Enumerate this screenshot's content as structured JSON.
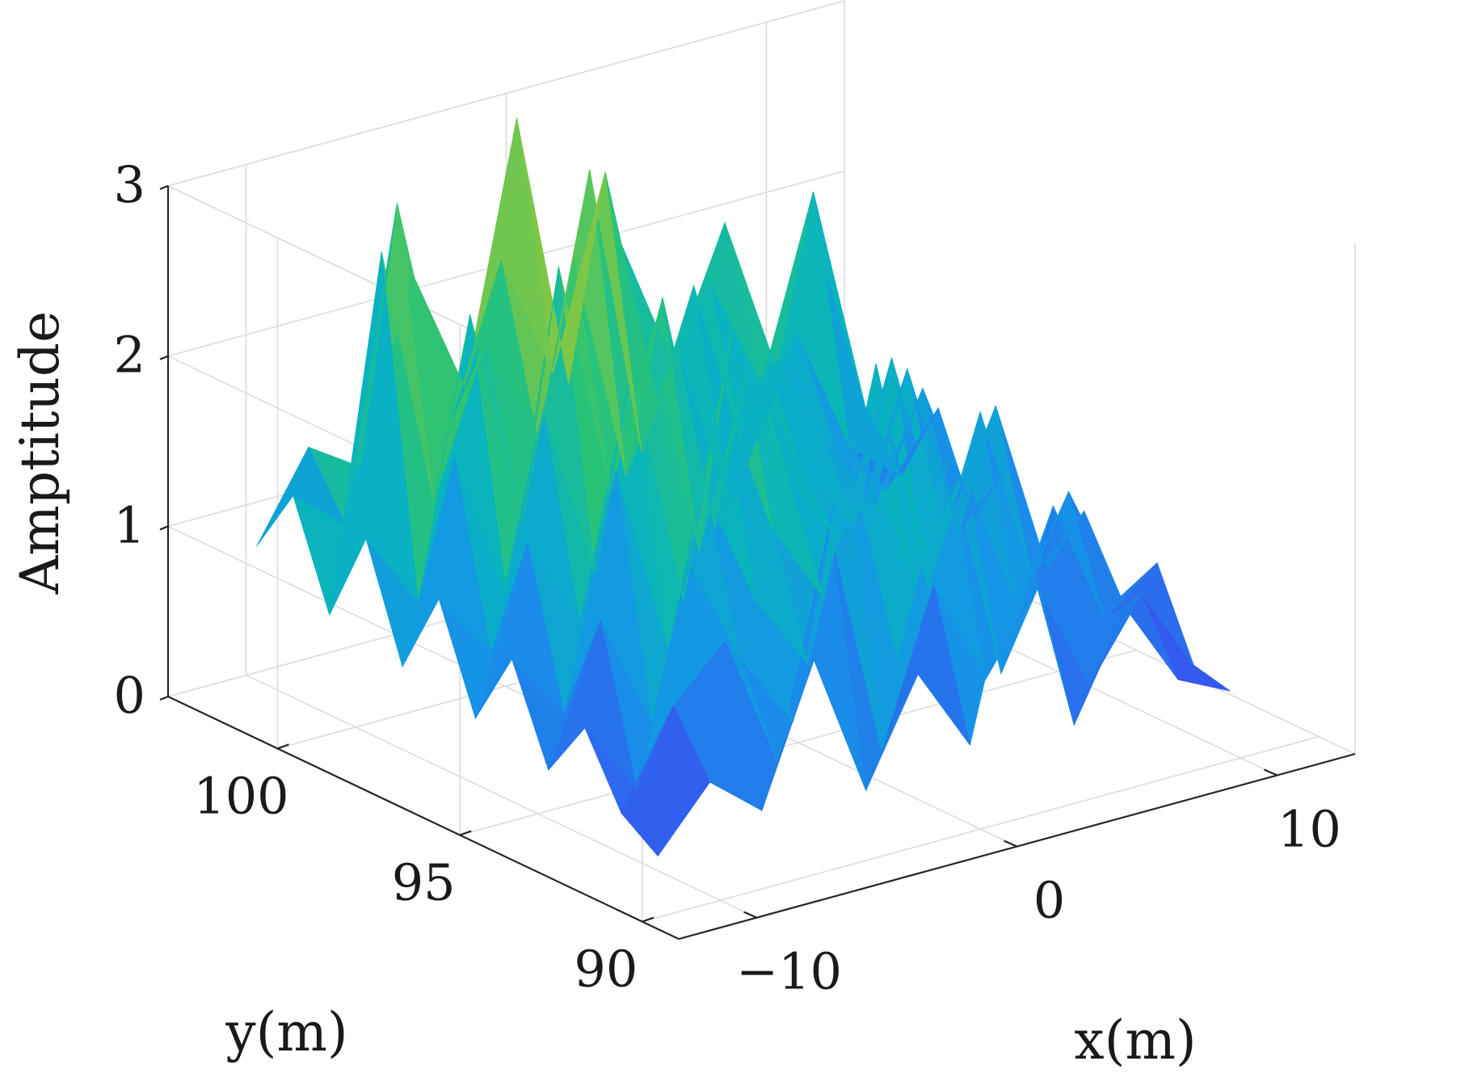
{
  "chart_data": {
    "type": "surface3d",
    "title": "",
    "xlabel": "x(m)",
    "ylabel": "y(m)",
    "zlabel": "Amptitude",
    "xlim": [
      -13,
      13
    ],
    "ylim": [
      89,
      103
    ],
    "zlim": [
      0,
      3
    ],
    "x_ticks": [
      {
        "value": -10,
        "label": "−10"
      },
      {
        "value": 0,
        "label": "0"
      },
      {
        "value": 10,
        "label": "10"
      }
    ],
    "y_ticks": [
      {
        "value": 90,
        "label": "90"
      },
      {
        "value": 95,
        "label": "95"
      },
      {
        "value": 100,
        "label": "100"
      }
    ],
    "z_ticks": [
      {
        "value": 0,
        "label": "0"
      },
      {
        "value": 1,
        "label": "1"
      },
      {
        "value": 2,
        "label": "2"
      },
      {
        "value": 3,
        "label": "3"
      }
    ],
    "grid": true,
    "colormap": "parula",
    "surface": {
      "x": [
        -11,
        -9,
        -7,
        -5,
        -3,
        -1,
        1,
        3,
        5,
        7,
        9,
        11
      ],
      "y": [
        91,
        92,
        93,
        94,
        95,
        96,
        97,
        98,
        99,
        100,
        101,
        102
      ],
      "z": [
        [
          0.2,
          0.55,
          0.3,
          1.1,
          0.25,
          0.85,
          0.35,
          1.6,
          0.3,
          0.9,
          0.4,
          0.25
        ],
        [
          0.35,
          0.9,
          1.2,
          0.4,
          1.7,
          0.3,
          1.2,
          0.55,
          1.0,
          0.35,
          0.8,
          0.3
        ],
        [
          0.75,
          0.3,
          1.55,
          0.9,
          0.45,
          2.05,
          0.65,
          1.75,
          0.4,
          1.3,
          0.55,
          0.8
        ],
        [
          0.4,
          1.2,
          0.5,
          1.8,
          1.05,
          0.6,
          1.85,
          0.95,
          1.5,
          0.6,
          1.2,
          0.5
        ],
        [
          0.95,
          0.55,
          1.9,
          0.75,
          2.2,
          1.3,
          0.8,
          2.1,
          0.7,
          1.65,
          0.6,
          0.9
        ],
        [
          0.5,
          1.45,
          0.9,
          2.3,
          0.85,
          2.5,
          1.4,
          0.95,
          1.95,
          0.8,
          1.5,
          0.45
        ],
        [
          1.1,
          0.7,
          2.05,
          1.0,
          2.45,
          0.95,
          2.05,
          1.25,
          0.85,
          1.7,
          0.65,
          1.0
        ],
        [
          0.6,
          1.75,
          0.85,
          2.7,
          1.3,
          2.35,
          0.9,
          1.8,
          1.35,
          0.75,
          1.4,
          0.55
        ],
        [
          1.25,
          0.8,
          2.4,
          1.1,
          2.55,
          1.2,
          1.85,
          0.85,
          1.55,
          1.05,
          0.7,
          1.1
        ],
        [
          0.7,
          2.75,
          1.2,
          2.05,
          1.4,
          2.9,
          1.15,
          2.05,
          0.95,
          1.6,
          0.85,
          0.6
        ],
        [
          1.3,
          1.05,
          2.85,
          1.45,
          2.35,
          1.6,
          2.7,
          1.25,
          1.9,
          1.2,
          2.25,
          0.9
        ],
        [
          0.9,
          1.4,
          1.2,
          2.25,
          1.5,
          3.0,
          1.35,
          2.1,
          1.3,
          2.05,
          1.1,
          1.55
        ]
      ]
    }
  }
}
